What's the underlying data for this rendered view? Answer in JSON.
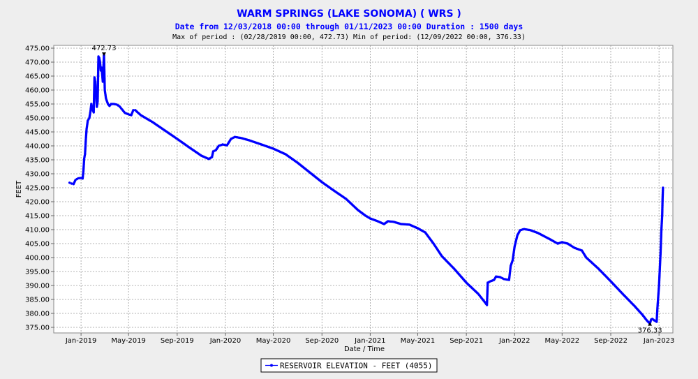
{
  "chart_data": {
    "type": "line",
    "title": "WARM SPRINGS (LAKE SONOMA) ( WRS )",
    "subtitle": "Date from 12/03/2018 00:00 through 01/11/2023 00:00 Duration : 1500 days",
    "stats_line": "Max of period : (02/28/2019 00:00, 472.73)  Min of period: (12/09/2022 00:00,  376.33)",
    "xlabel": "Date / Time",
    "ylabel": "FEET",
    "x_ticks": [
      "Jan-2019",
      "May-2019",
      "Sep-2019",
      "Jan-2020",
      "May-2020",
      "Sep-2020",
      "Jan-2021",
      "May-2021",
      "Sep-2021",
      "Jan-2022",
      "May-2022",
      "Sep-2022",
      "Jan-2023"
    ],
    "y_ticks": [
      "375.00",
      "380.00",
      "385.00",
      "390.00",
      "395.00",
      "400.00",
      "405.00",
      "410.00",
      "415.00",
      "420.00",
      "425.00",
      "430.00",
      "435.00",
      "440.00",
      "445.00",
      "450.00",
      "455.00",
      "460.00",
      "465.00",
      "470.00",
      "475.00"
    ],
    "ylim": [
      373,
      476
    ],
    "xlim_days_from_2018_12_03": [
      -40,
      1525
    ],
    "grid": true,
    "legend_position": "bottom-center",
    "max_label": "472.73",
    "min_label": "376.33",
    "series": [
      {
        "name": "RESERVOIR ELEVATION - FEET (4055)",
        "color": "#0000ff",
        "points": [
          [
            "2018-12-03",
            426.8
          ],
          [
            "2018-12-08",
            426.5
          ],
          [
            "2018-12-13",
            426.3
          ],
          [
            "2018-12-18",
            427.8
          ],
          [
            "2018-12-25",
            428.4
          ],
          [
            "2019-01-01",
            428.5
          ],
          [
            "2019-01-05",
            428.3
          ],
          [
            "2019-01-07",
            431.0
          ],
          [
            "2019-01-09",
            435.5
          ],
          [
            "2019-01-11",
            437.0
          ],
          [
            "2019-01-13",
            442.0
          ],
          [
            "2019-01-15",
            446.0
          ],
          [
            "2019-01-18",
            449.0
          ],
          [
            "2019-01-22",
            450.0
          ],
          [
            "2019-01-25",
            452.5
          ],
          [
            "2019-01-27",
            455.0
          ],
          [
            "2019-01-30",
            453.0
          ],
          [
            "2019-02-02",
            452.0
          ],
          [
            "2019-02-04",
            464.5
          ],
          [
            "2019-02-06",
            463.0
          ],
          [
            "2019-02-08",
            458.0
          ],
          [
            "2019-02-10",
            454.0
          ],
          [
            "2019-02-12",
            456.0
          ],
          [
            "2019-02-14",
            472.0
          ],
          [
            "2019-02-16",
            471.5
          ],
          [
            "2019-02-18",
            470.0
          ],
          [
            "2019-02-20",
            467.0
          ],
          [
            "2019-02-22",
            468.0
          ],
          [
            "2019-02-25",
            463.0
          ],
          [
            "2019-02-28",
            472.73
          ],
          [
            "2019-03-02",
            460.0
          ],
          [
            "2019-03-05",
            457.0
          ],
          [
            "2019-03-10",
            455.0
          ],
          [
            "2019-03-14",
            454.3
          ],
          [
            "2019-03-18",
            455.0
          ],
          [
            "2019-03-25",
            455.0
          ],
          [
            "2019-04-01",
            454.8
          ],
          [
            "2019-04-08",
            454.2
          ],
          [
            "2019-04-15",
            453.0
          ],
          [
            "2019-04-22",
            451.8
          ],
          [
            "2019-05-01",
            451.3
          ],
          [
            "2019-05-08",
            451.0
          ],
          [
            "2019-05-13",
            452.8
          ],
          [
            "2019-05-18",
            452.8
          ],
          [
            "2019-06-01",
            451.0
          ],
          [
            "2019-07-01",
            448.5
          ],
          [
            "2019-08-01",
            445.5
          ],
          [
            "2019-09-01",
            442.5
          ],
          [
            "2019-10-01",
            439.5
          ],
          [
            "2019-11-01",
            436.5
          ],
          [
            "2019-11-20",
            435.3
          ],
          [
            "2019-11-28",
            436.0
          ],
          [
            "2019-12-01",
            438.0
          ],
          [
            "2019-12-08",
            438.5
          ],
          [
            "2019-12-15",
            440.0
          ],
          [
            "2019-12-25",
            440.5
          ],
          [
            "2020-01-05",
            440.2
          ],
          [
            "2020-01-15",
            442.5
          ],
          [
            "2020-01-25",
            443.2
          ],
          [
            "2020-02-10",
            442.8
          ],
          [
            "2020-03-01",
            442.0
          ],
          [
            "2020-04-01",
            440.5
          ],
          [
            "2020-05-01",
            439.0
          ],
          [
            "2020-06-01",
            437.0
          ],
          [
            "2020-07-01",
            434.0
          ],
          [
            "2020-08-01",
            430.5
          ],
          [
            "2020-09-01",
            427.0
          ],
          [
            "2020-10-01",
            424.0
          ],
          [
            "2020-11-01",
            421.0
          ],
          [
            "2020-12-01",
            417.0
          ],
          [
            "2020-12-20",
            415.0
          ],
          [
            "2021-01-01",
            414.0
          ],
          [
            "2021-01-20",
            413.0
          ],
          [
            "2021-02-05",
            412.0
          ],
          [
            "2021-02-15",
            413.0
          ],
          [
            "2021-03-01",
            412.8
          ],
          [
            "2021-03-20",
            412.0
          ],
          [
            "2021-04-10",
            411.8
          ],
          [
            "2021-05-01",
            410.5
          ],
          [
            "2021-05-20",
            409.0
          ],
          [
            "2021-06-10",
            405.0
          ],
          [
            "2021-07-01",
            400.5
          ],
          [
            "2021-08-01",
            396.0
          ],
          [
            "2021-09-01",
            391.0
          ],
          [
            "2021-10-01",
            387.0
          ],
          [
            "2021-10-15",
            384.5
          ],
          [
            "2021-10-23",
            383.0
          ],
          [
            "2021-10-25",
            391.0
          ],
          [
            "2021-11-01",
            391.5
          ],
          [
            "2021-11-10",
            392.0
          ],
          [
            "2021-11-15",
            393.2
          ],
          [
            "2021-11-25",
            393.0
          ],
          [
            "2021-12-05",
            392.3
          ],
          [
            "2021-12-18",
            392.0
          ],
          [
            "2021-12-22",
            397.0
          ],
          [
            "2021-12-27",
            399.0
          ],
          [
            "2022-01-01",
            404.0
          ],
          [
            "2022-01-08",
            408.0
          ],
          [
            "2022-01-15",
            409.8
          ],
          [
            "2022-01-25",
            410.2
          ],
          [
            "2022-02-10",
            409.8
          ],
          [
            "2022-03-01",
            408.8
          ],
          [
            "2022-04-01",
            406.5
          ],
          [
            "2022-04-20",
            405.0
          ],
          [
            "2022-05-01",
            405.5
          ],
          [
            "2022-05-15",
            405.0
          ],
          [
            "2022-06-01",
            403.5
          ],
          [
            "2022-06-20",
            402.5
          ],
          [
            "2022-07-01",
            400.0
          ],
          [
            "2022-08-01",
            396.0
          ],
          [
            "2022-09-01",
            391.5
          ],
          [
            "2022-10-01",
            387.0
          ],
          [
            "2022-11-01",
            382.5
          ],
          [
            "2022-11-20",
            379.5
          ],
          [
            "2022-12-01",
            377.5
          ],
          [
            "2022-12-09",
            376.33
          ],
          [
            "2022-12-12",
            377.8
          ],
          [
            "2022-12-15",
            378.0
          ],
          [
            "2022-12-20",
            377.5
          ],
          [
            "2022-12-26",
            377.0
          ],
          [
            "2022-12-28",
            382.0
          ],
          [
            "2022-12-30",
            386.0
          ],
          [
            "2023-01-01",
            390.0
          ],
          [
            "2023-01-03",
            396.0
          ],
          [
            "2023-01-05",
            402.0
          ],
          [
            "2023-01-07",
            410.0
          ],
          [
            "2023-01-09",
            415.0
          ],
          [
            "2023-01-10",
            421.0
          ],
          [
            "2023-01-11",
            425.0
          ]
        ]
      }
    ]
  }
}
